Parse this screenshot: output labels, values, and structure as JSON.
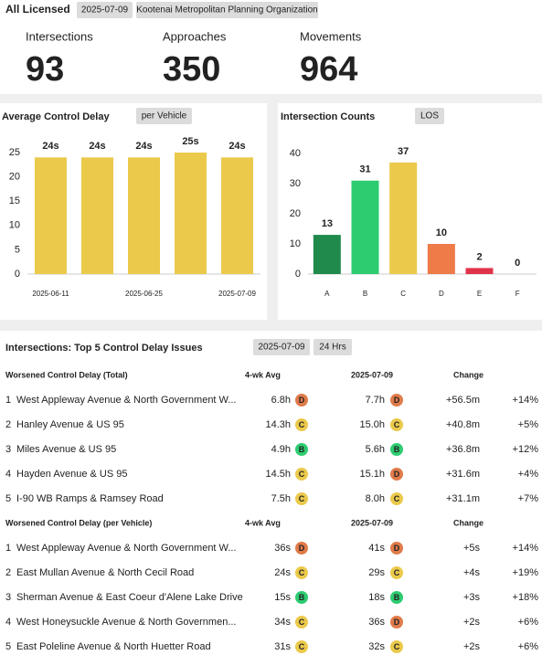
{
  "header": {
    "title": "All Licensed",
    "tags": [
      "2025-07-09",
      "Kootenai Metropolitan Planning Organization"
    ]
  },
  "kpis": [
    {
      "label": "Intersections",
      "value": 93
    },
    {
      "label": "Approaches",
      "value": 350
    },
    {
      "label": "Movements",
      "value": 964
    }
  ],
  "chart_data": [
    {
      "type": "bar",
      "title": "Average Control Delay",
      "tag": "per Vehicle",
      "categories": [
        "2025-06-11",
        null,
        "2025-06-25",
        null,
        "2025-07-09"
      ],
      "values": [
        24,
        24,
        24,
        25,
        24
      ],
      "value_labels": [
        "24s",
        "24s",
        "24s",
        "25s",
        "24s"
      ],
      "colors": [
        "#ebc94b",
        "#ebc94b",
        "#ebc94b",
        "#ebc94b",
        "#ebc94b"
      ],
      "ylim": [
        0,
        25
      ],
      "yticks": [
        0,
        5,
        10,
        15,
        20,
        25
      ]
    },
    {
      "type": "bar",
      "title": "Intersection Counts",
      "tag": "LOS",
      "categories": [
        "A",
        "B",
        "C",
        "D",
        "E",
        "F"
      ],
      "values": [
        13,
        31,
        37,
        10,
        2,
        0
      ],
      "colors": [
        "#1f8a4c",
        "#2ecc71",
        "#ebc94b",
        "#ee7b48",
        "#e0334a",
        "#cccccc"
      ],
      "ylim": [
        0,
        40
      ],
      "yticks": [
        0,
        10,
        20,
        30,
        40
      ]
    }
  ],
  "issues": {
    "title": "Intersections: Top 5 Control Delay Issues",
    "tags": [
      "2025-07-09",
      "24 Hrs"
    ],
    "grade_colors": {
      "B": "#2ecc71",
      "C": "#ebc94b",
      "D": "#e07b4a"
    },
    "tables": [
      {
        "header": [
          "Worsened Control Delay (Total)",
          "4-wk Avg",
          "2025-07-09",
          "Change"
        ],
        "rows": [
          [
            "1",
            "West Appleway Avenue & North Government W...",
            "6.8h",
            "D",
            "7.7h",
            "D",
            "+56.5m",
            "+14%"
          ],
          [
            "2",
            "Hanley Avenue & US 95",
            "14.3h",
            "C",
            "15.0h",
            "C",
            "+40.8m",
            "+5%"
          ],
          [
            "3",
            "Miles Avenue & US 95",
            "4.9h",
            "B",
            "5.6h",
            "B",
            "+36.8m",
            "+12%"
          ],
          [
            "4",
            "Hayden Avenue & US 95",
            "14.5h",
            "C",
            "15.1h",
            "D",
            "+31.6m",
            "+4%"
          ],
          [
            "5",
            "I-90 WB Ramps & Ramsey Road",
            "7.5h",
            "C",
            "8.0h",
            "C",
            "+31.1m",
            "+7%"
          ]
        ]
      },
      {
        "header": [
          "Worsened Control Delay (per Vehicle)",
          "4-wk Avg",
          "2025-07-09",
          "Change"
        ],
        "rows": [
          [
            "1",
            "West Appleway Avenue & North Government W...",
            "36s",
            "D",
            "41s",
            "D",
            "+5s",
            "+14%"
          ],
          [
            "2",
            "East Mullan Avenue & North Cecil Road",
            "24s",
            "C",
            "29s",
            "C",
            "+4s",
            "+19%"
          ],
          [
            "3",
            "Sherman Avenue & East Coeur d'Alene Lake Drive",
            "15s",
            "B",
            "18s",
            "B",
            "+3s",
            "+18%"
          ],
          [
            "4",
            "West Honeysuckle Avenue & North Governmen...",
            "34s",
            "C",
            "36s",
            "D",
            "+2s",
            "+6%"
          ],
          [
            "5",
            "East Poleline Avenue & North Huetter Road",
            "31s",
            "C",
            "32s",
            "C",
            "+2s",
            "+6%"
          ]
        ]
      }
    ]
  }
}
